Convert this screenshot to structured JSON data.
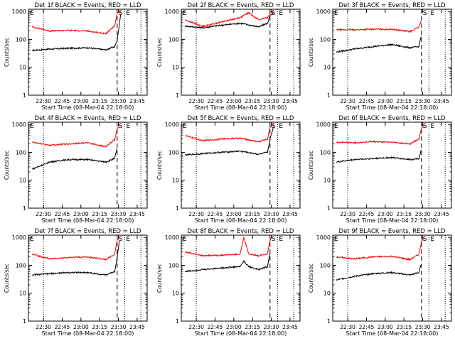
{
  "page": {
    "layout": "3x3 grid of panels"
  },
  "shared": {
    "ylabel": "Counts/sec",
    "xlabel": "Start Time (08-Mar-04 22:18:00)",
    "xticks": [
      "22:30",
      "22:45",
      "23:00",
      "23:15",
      "23:30",
      "23:45"
    ],
    "ytick_labels": [
      "1",
      "10",
      "100",
      "1000"
    ],
    "markers": [
      "S",
      "E"
    ],
    "colors": {
      "events": "#000000",
      "lld": "#ff0000",
      "axes": "#000000",
      "background": "#ffffff"
    }
  },
  "chart_data": [
    {
      "type": "line",
      "scale_y": "log",
      "ylim": [
        1,
        1200
      ],
      "xlim": [
        "22:18",
        "23:53"
      ],
      "title": "Det 1f BLACK = Events, RED = LLD",
      "xlabel": "Start Time (08-Mar-04 22:18:00)",
      "ylabel": "Counts/sec",
      "vlines": {
        "dotted": [
          "22:30",
          "23:35",
          "23:48"
        ],
        "dashed": [
          "23:29"
        ]
      },
      "series": [
        {
          "name": "BLACK = Events",
          "x": [
            "22:21",
            "22:35",
            "22:50",
            "23:05",
            "23:20",
            "23:27",
            "23:29",
            "23:32"
          ],
          "values": [
            40,
            45,
            48,
            50,
            42,
            55,
            90,
            900
          ]
        },
        {
          "name": "RED = LLD",
          "x": [
            "22:21",
            "22:35",
            "22:50",
            "23:05",
            "23:20",
            "23:27",
            "23:29",
            "23:32"
          ],
          "values": [
            280,
            200,
            210,
            200,
            160,
            300,
            900,
            1000
          ]
        }
      ]
    },
    {
      "type": "line",
      "scale_y": "log",
      "ylim": [
        1,
        1200
      ],
      "xlim": [
        "22:18",
        "23:53"
      ],
      "title": "Det 2f BLACK = Events, RED = LLD",
      "xlabel": "Start Time (08-Mar-04 22:18:00)",
      "ylabel": "Counts/sec",
      "vlines": {
        "dotted": [
          "22:30",
          "23:35",
          "23:48"
        ],
        "dashed": [
          "23:29"
        ]
      },
      "series": [
        {
          "name": "BLACK = Events",
          "x": [
            "22:21",
            "22:35",
            "22:50",
            "23:05",
            "23:20",
            "23:27",
            "23:29",
            "23:32"
          ],
          "values": [
            300,
            260,
            320,
            380,
            280,
            380,
            700,
            900
          ]
        },
        {
          "name": "RED = LLD",
          "x": [
            "22:21",
            "22:35",
            "22:50",
            "23:05",
            "23:12",
            "23:20",
            "23:27",
            "23:29",
            "23:32"
          ],
          "values": [
            500,
            290,
            420,
            600,
            900,
            500,
            600,
            900,
            1000
          ]
        }
      ]
    },
    {
      "type": "line",
      "scale_y": "log",
      "ylim": [
        1,
        1200
      ],
      "xlim": [
        "22:18",
        "23:53"
      ],
      "title": "Det 3f BLACK = Events, RED = LLD",
      "xlabel": "Start Time (08-Mar-04 22:18:00)",
      "ylabel": "Counts/sec",
      "vlines": {
        "dotted": [
          "22:30",
          "23:35",
          "23:48"
        ],
        "dashed": [
          "23:29"
        ]
      },
      "series": [
        {
          "name": "BLACK = Events",
          "x": [
            "22:21",
            "22:35",
            "22:50",
            "23:05",
            "23:20",
            "23:27",
            "23:29"
          ],
          "values": [
            35,
            45,
            55,
            65,
            50,
            55,
            150
          ]
        },
        {
          "name": "RED = LLD",
          "x": [
            "22:21",
            "22:35",
            "22:50",
            "23:05",
            "23:20",
            "23:27",
            "23:29"
          ],
          "values": [
            220,
            220,
            230,
            230,
            190,
            280,
            500
          ]
        }
      ]
    },
    {
      "type": "line",
      "scale_y": "log",
      "ylim": [
        1,
        1200
      ],
      "xlim": [
        "22:18",
        "23:53"
      ],
      "title": "Det 4f BLACK = Events, RED = LLD",
      "xlabel": "Start Time (08-Mar-04 22:18:00)",
      "ylabel": "Counts/sec",
      "vlines": {
        "dotted": [
          "22:30",
          "23:35",
          "23:48"
        ],
        "dashed": [
          "23:29"
        ]
      },
      "series": [
        {
          "name": "BLACK = Events",
          "x": [
            "22:21",
            "22:35",
            "22:50",
            "23:05",
            "23:20",
            "23:27",
            "23:29"
          ],
          "values": [
            25,
            45,
            55,
            55,
            45,
            60,
            150
          ]
        },
        {
          "name": "RED = LLD",
          "x": [
            "22:21",
            "22:35",
            "22:50",
            "23:05",
            "23:20",
            "23:27",
            "23:29",
            "23:31"
          ],
          "values": [
            230,
            180,
            200,
            220,
            160,
            280,
            700,
            1000
          ]
        }
      ]
    },
    {
      "type": "line",
      "scale_y": "log",
      "ylim": [
        1,
        1200
      ],
      "xlim": [
        "22:18",
        "23:53"
      ],
      "title": "Det 5f BLACK = Events, RED = LLD",
      "xlabel": "Start Time (08-Mar-04 22:18:00)",
      "ylabel": "Counts/sec",
      "vlines": {
        "dotted": [
          "22:30",
          "23:35",
          "23:48"
        ],
        "dashed": [
          "23:29"
        ]
      },
      "series": [
        {
          "name": "BLACK = Events",
          "x": [
            "22:21",
            "22:35",
            "22:50",
            "23:05",
            "23:20",
            "23:27",
            "23:29",
            "23:32"
          ],
          "values": [
            80,
            90,
            100,
            110,
            85,
            100,
            300,
            900
          ]
        },
        {
          "name": "RED = LLD",
          "x": [
            "22:21",
            "22:35",
            "22:50",
            "23:05",
            "23:20",
            "23:27",
            "23:29",
            "23:32"
          ],
          "values": [
            400,
            260,
            300,
            320,
            240,
            300,
            800,
            1000
          ]
        }
      ]
    },
    {
      "type": "line",
      "scale_y": "log",
      "ylim": [
        1,
        1200
      ],
      "xlim": [
        "22:18",
        "23:53"
      ],
      "title": "Det 6f BLACK = Events, RED = LLD",
      "xlabel": "Start Time (08-Mar-04 22:18:00)",
      "ylabel": "Counts/sec",
      "vlines": {
        "dotted": [
          "22:30",
          "23:35",
          "23:48"
        ],
        "dashed": [
          "23:29"
        ]
      },
      "series": [
        {
          "name": "BLACK = Events",
          "x": [
            "22:21",
            "22:35",
            "22:50",
            "23:05",
            "23:20",
            "23:27",
            "23:29"
          ],
          "values": [
            45,
            55,
            60,
            65,
            55,
            60,
            130
          ]
        },
        {
          "name": "RED = LLD",
          "x": [
            "22:21",
            "22:35",
            "22:50",
            "23:05",
            "23:20",
            "23:27",
            "23:29",
            "23:31"
          ],
          "values": [
            230,
            220,
            240,
            230,
            200,
            300,
            700,
            1000
          ]
        }
      ]
    },
    {
      "type": "line",
      "scale_y": "log",
      "ylim": [
        1,
        1200
      ],
      "xlim": [
        "22:18",
        "23:53"
      ],
      "title": "Det 7f BLACK = Events, RED = LLD",
      "xlabel": "Start Time (08-Mar-04 22:18:00)",
      "ylabel": "Counts/sec",
      "vlines": {
        "dotted": [
          "22:30",
          "23:35",
          "23:48"
        ],
        "dashed": [
          "23:29"
        ]
      },
      "series": [
        {
          "name": "BLACK = Events",
          "x": [
            "22:21",
            "22:35",
            "22:50",
            "23:05",
            "23:20",
            "23:27",
            "23:29",
            "23:31"
          ],
          "values": [
            45,
            50,
            55,
            55,
            45,
            60,
            200,
            900
          ]
        },
        {
          "name": "RED = LLD",
          "x": [
            "22:21",
            "22:35",
            "22:50",
            "23:05",
            "23:20",
            "23:27",
            "23:29",
            "23:31"
          ],
          "values": [
            250,
            170,
            190,
            200,
            160,
            250,
            800,
            1000
          ]
        }
      ]
    },
    {
      "type": "line",
      "scale_y": "log",
      "ylim": [
        1,
        1200
      ],
      "xlim": [
        "22:18",
        "23:53"
      ],
      "title": "Det 8f BLACK = Events, RED = LLD",
      "xlabel": "Start Time (08-Mar-04 22:18:00)",
      "ylabel": "Counts/sec",
      "vlines": {
        "dotted": [
          "22:30",
          "23:35",
          "23:48"
        ],
        "dashed": [
          "23:29"
        ]
      },
      "series": [
        {
          "name": "BLACK = Events",
          "x": [
            "22:21",
            "22:35",
            "22:50",
            "23:05",
            "23:08",
            "23:12",
            "23:20",
            "23:27",
            "23:29"
          ],
          "values": [
            60,
            70,
            80,
            90,
            140,
            90,
            70,
            90,
            300
          ]
        },
        {
          "name": "RED = LLD",
          "x": [
            "22:21",
            "22:35",
            "22:50",
            "23:05",
            "23:08",
            "23:12",
            "23:20",
            "23:27",
            "23:29",
            "23:31"
          ],
          "values": [
            300,
            220,
            230,
            250,
            1000,
            250,
            220,
            260,
            800,
            1000
          ]
        }
      ]
    },
    {
      "type": "line",
      "scale_y": "log",
      "ylim": [
        1,
        1200
      ],
      "xlim": [
        "22:18",
        "23:53"
      ],
      "title": "Det 9f BLACK = Events, RED = LLD",
      "xlabel": "Start Time (08-Mar-04 22:18:00)",
      "ylabel": "Counts/sec",
      "vlines": {
        "dotted": [
          "22:30",
          "23:35",
          "23:48"
        ],
        "dashed": [
          "23:29"
        ]
      },
      "series": [
        {
          "name": "BLACK = Events",
          "x": [
            "22:21",
            "22:35",
            "22:50",
            "23:05",
            "23:20",
            "23:27",
            "23:29"
          ],
          "values": [
            30,
            40,
            50,
            55,
            45,
            55,
            120
          ]
        },
        {
          "name": "RED = LLD",
          "x": [
            "22:21",
            "22:35",
            "22:50",
            "23:05",
            "23:20",
            "23:27",
            "23:29",
            "23:31"
          ],
          "values": [
            200,
            170,
            200,
            210,
            160,
            250,
            700,
            1000
          ]
        }
      ]
    }
  ]
}
